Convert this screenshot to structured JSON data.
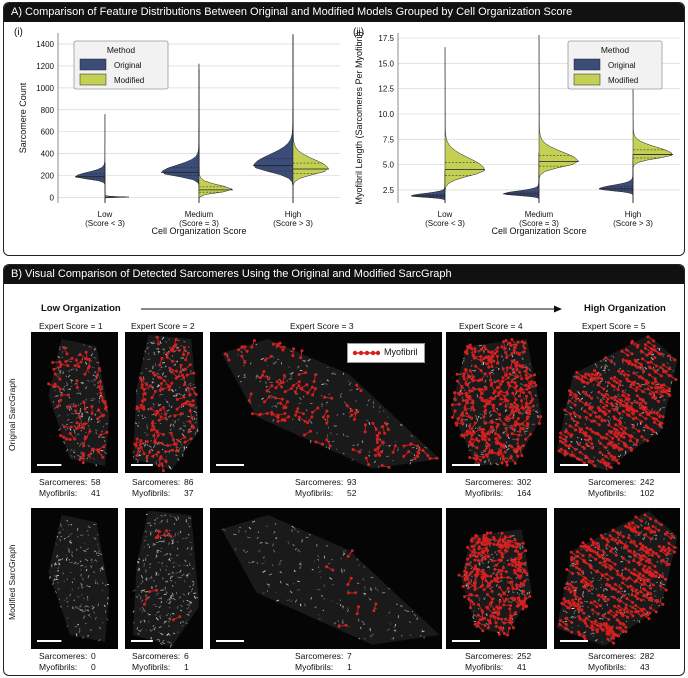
{
  "panel_a": {
    "title": "A)  Comparison of Feature Distributions Between Original and Modified Models Grouped by Cell Organization Score",
    "sub_i": "(i)",
    "sub_ii": "(ii)"
  },
  "panel_b": {
    "title": "B)  Visual Comparison of Detected Sarcomeres Using the Original and Modified SarcGraph",
    "low_label": "Low Organization",
    "high_label": "High Organization",
    "row_original": "Original SarcGraph",
    "row_modified": "Modified SarcGraph",
    "legend_label": "Myofibril",
    "sarc_label": "Sarcomeres:",
    "myo_label": "Myofibrils:",
    "columns": [
      {
        "expert": "Expert Score = 1",
        "orig_sarc": "58",
        "orig_myo": "41",
        "mod_sarc": "0",
        "mod_myo": "0"
      },
      {
        "expert": "Expert Score = 2",
        "orig_sarc": "86",
        "orig_myo": "37",
        "mod_sarc": "6",
        "mod_myo": "1"
      },
      {
        "expert": "Expert Score = 3",
        "orig_sarc": "93",
        "orig_myo": "52",
        "mod_sarc": "7",
        "mod_myo": "1"
      },
      {
        "expert": "Expert Score = 4",
        "orig_sarc": "302",
        "orig_myo": "164",
        "mod_sarc": "252",
        "mod_myo": "41"
      },
      {
        "expert": "Expert Score = 5",
        "orig_sarc": "242",
        "orig_myo": "102",
        "mod_sarc": "282",
        "mod_myo": "43"
      }
    ]
  },
  "colors": {
    "original": "#3b4c78",
    "modified": "#c4cf55",
    "detection": "#d42020"
  },
  "chart_data": [
    {
      "type": "violin",
      "title": "",
      "xlabel": "Cell Organization Score",
      "ylabel": "Sarcomere Count",
      "ylim": [
        -50,
        1500
      ],
      "yticks": [
        0,
        200,
        400,
        600,
        800,
        1000,
        1200,
        1400
      ],
      "categories": [
        "Low\n(Score < 3)",
        "Medium\n(Score = 3)",
        "High\n(Score > 3)"
      ],
      "legend": {
        "title": "Method",
        "placement": "top-left"
      },
      "series": [
        {
          "name": "Original",
          "median": [
            190,
            230,
            290
          ],
          "max": [
            760,
            1220,
            1490
          ]
        },
        {
          "name": "Modified",
          "median": [
            5,
            70,
            260
          ],
          "max": [
            320,
            1170,
            1480
          ]
        }
      ]
    },
    {
      "type": "violin",
      "title": "",
      "xlabel": "Cell Organization Score",
      "ylabel": "Myofibril Length (Sarcomeres Per Myofibril)",
      "ylim": [
        1.2,
        18
      ],
      "yticks": [
        2.5,
        5.0,
        7.5,
        10.0,
        12.5,
        15.0,
        17.5
      ],
      "categories": [
        "Low\n(Score < 3)",
        "Medium\n(Score = 3)",
        "High\n(Score > 3)"
      ],
      "legend": {
        "title": "Method",
        "placement": "top-right"
      },
      "series": [
        {
          "name": "Original",
          "median": [
            1.9,
            2.1,
            2.6
          ],
          "max": [
            4.4,
            6.2,
            6.0
          ]
        },
        {
          "name": "Modified",
          "median": [
            4.5,
            5.3,
            6.0
          ],
          "max": [
            16.6,
            17.8,
            12.5
          ]
        }
      ]
    }
  ]
}
